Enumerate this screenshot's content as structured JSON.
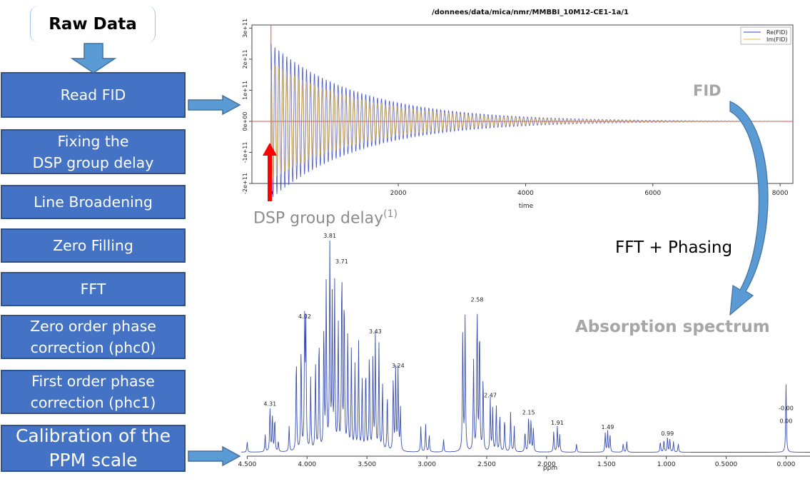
{
  "start_label": "Raw Data",
  "steps": [
    "Read FID",
    "Fixing the\nDSP group delay",
    "Line Broadening",
    "Zero Filling",
    "FFT",
    "Zero order phase\ncorrection (phc0)",
    "First order phase\ncorrection (phc1)",
    "Calibration of the\nPPM scale"
  ],
  "annotations": {
    "fid_label": "FID",
    "dsp_label": "DSP group delay",
    "dsp_superscript": "(1)",
    "fft_label": "FFT + Phasing",
    "absorption_label": "Absorption spectrum"
  },
  "colors": {
    "step_fill": "#4472c4",
    "step_border": "#2f528f",
    "arrow_fill": "#5b9bd5",
    "red_arrow": "#ff0000",
    "spectrum_line": "#3a4fb0",
    "grey_label": "#a6a6a6"
  },
  "chart_data": [
    {
      "type": "line",
      "title": "/donnees/data/mica/nmr/MMBBI_10M12-CE1-1a/1",
      "xlabel": "time",
      "ylabel": "",
      "xlim": [
        -300,
        8200
      ],
      "ylim": [
        -200000000000.0,
        310000000000.0
      ],
      "x_ticks": [
        "0",
        "2000",
        "4000",
        "6000",
        "8000"
      ],
      "y_ticks": [
        "-2e+11",
        "-1e+11",
        "0e+00",
        "1e+11",
        "2e+11",
        "3e+11"
      ],
      "series": [
        {
          "name": "Re(FID)",
          "color": "#3344cc",
          "shape": "damped oscillation",
          "initial_amplitude": 250000000000.0,
          "decay_to_near_zero_at": 5000
        },
        {
          "name": "Im(FID)",
          "color": "#e8b84a",
          "shape": "damped oscillation",
          "initial_amplitude": 190000000000.0,
          "decay_to_near_zero_at": 5000
        }
      ],
      "legend": "top-right",
      "zero_line_color": "#e05050"
    },
    {
      "type": "line",
      "title": "",
      "xlabel": "ppm",
      "ylabel": "",
      "xlim": [
        4.55,
        -0.2
      ],
      "x_reversed": true,
      "x_ticks": [
        "4.500",
        "4.000",
        "3.500",
        "3.000",
        "2.500",
        "2.000",
        "1.500",
        "1.000",
        "0.5000",
        "0.000"
      ],
      "series": [
        {
          "name": "",
          "color": "#3a4fb0"
        }
      ],
      "peak_labels": [
        {
          "ppm": 4.31,
          "label": "4.31",
          "height": 0.21
        },
        {
          "ppm": 4.02,
          "label": "4.02",
          "height": 0.62
        },
        {
          "ppm": 3.81,
          "label": "3.81",
          "height": 1.0
        },
        {
          "ppm": 3.71,
          "label": "3.71",
          "height": 0.88
        },
        {
          "ppm": 3.43,
          "label": "3.43",
          "height": 0.55
        },
        {
          "ppm": 3.24,
          "label": "3.24",
          "height": 0.39
        },
        {
          "ppm": 2.58,
          "label": "2.58",
          "height": 0.7
        },
        {
          "ppm": 2.47,
          "label": "2.47",
          "height": 0.25
        },
        {
          "ppm": 2.15,
          "label": "2.15",
          "height": 0.17
        },
        {
          "ppm": 1.91,
          "label": "1.91",
          "height": 0.12
        },
        {
          "ppm": 1.49,
          "label": "1.49",
          "height": 0.1
        },
        {
          "ppm": 0.99,
          "label": "0.99",
          "height": 0.07
        },
        {
          "ppm": 0.0,
          "label": "-0.00",
          "height": 0.19
        },
        {
          "ppm": 0.0,
          "label": "0.00",
          "height": 0.13
        }
      ]
    }
  ]
}
